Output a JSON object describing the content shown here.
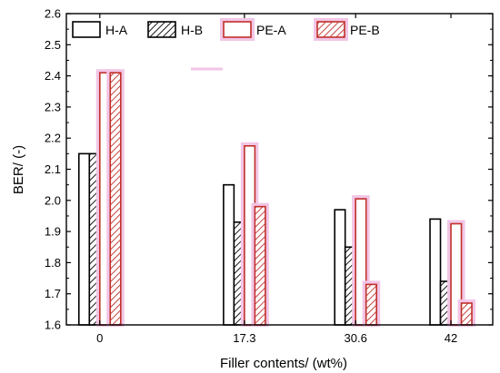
{
  "chart_data": {
    "type": "bar",
    "xlabel": "Filler contents/ (wt%)",
    "ylabel": "BER/ (-)",
    "ylim": [
      1.6,
      2.6
    ],
    "yticks": [
      "1.6",
      "1.7",
      "1.8",
      "1.9",
      "2.0",
      "2.1",
      "2.2",
      "2.3",
      "2.4",
      "2.5",
      "2.6"
    ],
    "x": [
      0,
      17.3,
      30.6,
      42
    ],
    "categories": [
      "0",
      "17.3",
      "30.6",
      "42"
    ],
    "grid": false,
    "legend_position": "top",
    "series": [
      {
        "name": "H-A",
        "values": [
          2.15,
          2.05,
          1.97,
          1.94
        ],
        "color": "#000000",
        "pattern": "solid-empty"
      },
      {
        "name": "H-B",
        "values": [
          2.15,
          1.93,
          1.85,
          1.74
        ],
        "color": "#000000",
        "pattern": "hatched"
      },
      {
        "name": "PE-A",
        "values": [
          2.41,
          2.175,
          2.005,
          1.925
        ],
        "color": "#c0302a",
        "pattern": "solid-empty"
      },
      {
        "name": "PE-B",
        "values": [
          2.41,
          1.98,
          1.73,
          1.67
        ],
        "color": "#c0302a",
        "pattern": "hatched"
      }
    ]
  }
}
